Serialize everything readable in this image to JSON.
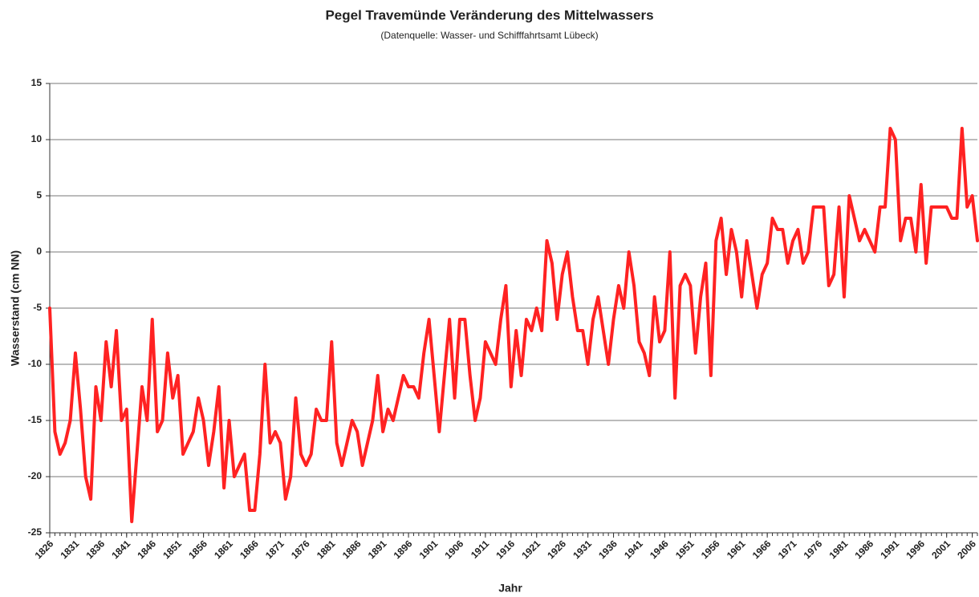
{
  "chart_data": {
    "type": "line",
    "title": "Pegel Travemünde Veränderung des Mittelwassers",
    "subtitle": "(Datenquelle: Wasser- und Schifffahrtsamt Lübeck)",
    "xlabel": "Jahr",
    "ylabel": "Wasserstand (cm NN)",
    "x": [
      1826,
      1827,
      1828,
      1829,
      1830,
      1831,
      1832,
      1833,
      1834,
      1835,
      1836,
      1837,
      1838,
      1839,
      1840,
      1841,
      1842,
      1843,
      1844,
      1845,
      1846,
      1847,
      1848,
      1849,
      1850,
      1851,
      1852,
      1853,
      1854,
      1855,
      1856,
      1857,
      1858,
      1859,
      1860,
      1861,
      1862,
      1863,
      1864,
      1865,
      1866,
      1867,
      1868,
      1869,
      1870,
      1871,
      1872,
      1873,
      1874,
      1875,
      1876,
      1877,
      1878,
      1879,
      1880,
      1881,
      1882,
      1883,
      1884,
      1885,
      1886,
      1887,
      1888,
      1889,
      1890,
      1891,
      1892,
      1893,
      1894,
      1895,
      1896,
      1897,
      1898,
      1899,
      1900,
      1901,
      1902,
      1903,
      1904,
      1905,
      1906,
      1907,
      1908,
      1909,
      1910,
      1911,
      1912,
      1913,
      1914,
      1915,
      1916,
      1917,
      1918,
      1919,
      1920,
      1921,
      1922,
      1923,
      1924,
      1925,
      1926,
      1927,
      1928,
      1929,
      1930,
      1931,
      1932,
      1933,
      1934,
      1935,
      1936,
      1937,
      1938,
      1939,
      1940,
      1941,
      1942,
      1943,
      1944,
      1945,
      1946,
      1947,
      1948,
      1949,
      1950,
      1951,
      1952,
      1953,
      1954,
      1955,
      1956,
      1957,
      1958,
      1959,
      1960,
      1961,
      1962,
      1963,
      1964,
      1965,
      1966,
      1967,
      1968,
      1969,
      1970,
      1971,
      1972,
      1973,
      1974,
      1975,
      1976,
      1977,
      1978,
      1979,
      1980,
      1981,
      1982,
      1983,
      1984,
      1985,
      1986,
      1987,
      1988,
      1989,
      1990,
      1991,
      1992,
      1993,
      1994,
      1995,
      1996,
      1997,
      1998,
      1999,
      2000,
      2001,
      2002,
      2003,
      2004,
      2005,
      2006,
      2007
    ],
    "series": [
      {
        "name": "Mittelwasser",
        "color": "#ff2222",
        "values": [
          -5,
          -16,
          -18,
          -17,
          -15,
          -9,
          -14,
          -20,
          -22,
          -12,
          -15,
          -8,
          -12,
          -7,
          -15,
          -14,
          -24,
          -18,
          -12,
          -15,
          -6,
          -16,
          -15,
          -9,
          -13,
          -11,
          -18,
          -17,
          -16,
          -13,
          -15,
          -19,
          -16,
          -12,
          -21,
          -15,
          -20,
          -19,
          -18,
          -23,
          -23,
          -18,
          -10,
          -17,
          -16,
          -17,
          -22,
          -20,
          -13,
          -18,
          -19,
          -18,
          -14,
          -15,
          -15,
          -8,
          -17,
          -19,
          -17,
          -15,
          -16,
          -19,
          -17,
          -15,
          -11,
          -16,
          -14,
          -15,
          -13,
          -11,
          -12,
          -12,
          -13,
          -9,
          -6,
          -11,
          -16,
          -11,
          -6,
          -13,
          -6,
          -6,
          -11,
          -15,
          -13,
          -8,
          -9,
          -10,
          -6,
          -3,
          -12,
          -7,
          -11,
          -6,
          -7,
          -5,
          -7,
          1,
          -1,
          -6,
          -2,
          0,
          -4,
          -7,
          -7,
          -10,
          -6,
          -4,
          -7,
          -10,
          -6,
          -3,
          -5,
          0,
          -3,
          -8,
          -9,
          -11,
          -4,
          -8,
          -7,
          0,
          -13,
          -3,
          -2,
          -3,
          -9,
          -4,
          -1,
          -11,
          1,
          3,
          -2,
          2,
          0,
          -4,
          1,
          -2,
          -5,
          -2,
          -1,
          3,
          2,
          2,
          -1,
          1,
          2,
          -1,
          0,
          4,
          4,
          4,
          -3,
          -2,
          4,
          -4,
          5,
          3,
          1,
          2,
          1,
          0,
          4,
          4,
          11,
          10,
          1,
          3,
          3,
          0,
          6,
          -1,
          4,
          4,
          4,
          4,
          3,
          3,
          11,
          4,
          5,
          1
        ]
      }
    ],
    "xlim": [
      1826,
      2007
    ],
    "xticks": [
      1826,
      1831,
      1836,
      1841,
      1846,
      1851,
      1856,
      1861,
      1866,
      1871,
      1876,
      1881,
      1886,
      1891,
      1896,
      1901,
      1906,
      1911,
      1916,
      1921,
      1926,
      1931,
      1936,
      1941,
      1946,
      1951,
      1956,
      1961,
      1966,
      1971,
      1976,
      1981,
      1986,
      1991,
      1996,
      2001,
      2006
    ],
    "ylim": [
      -25,
      15
    ],
    "yticks": [
      -25,
      -20,
      -15,
      -10,
      -5,
      0,
      5,
      10,
      15
    ],
    "grid": true
  }
}
